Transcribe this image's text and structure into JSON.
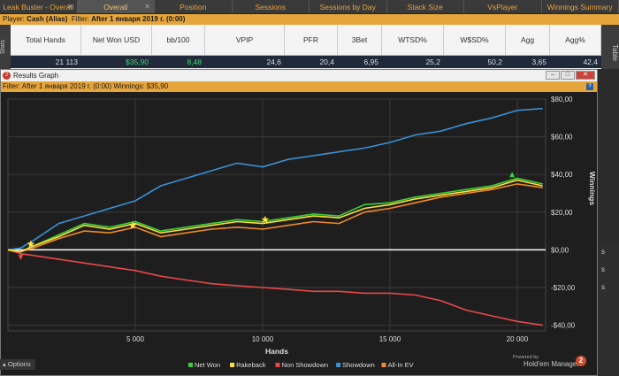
{
  "tabs": [
    {
      "label": "Leak Buster - Overall",
      "active": false,
      "closable": true
    },
    {
      "label": "Overall",
      "active": true,
      "closable": true
    },
    {
      "label": "Position",
      "active": false,
      "closable": false
    },
    {
      "label": "Sessions",
      "active": false,
      "closable": false
    },
    {
      "label": "Sessions by Day",
      "active": false,
      "closable": false
    },
    {
      "label": "Stack Size",
      "active": false,
      "closable": false
    },
    {
      "label": "VsPlayer",
      "active": false,
      "closable": false
    },
    {
      "label": "Winnings Summary",
      "active": false,
      "closable": false
    }
  ],
  "filter_bar": {
    "player_label": "Player:",
    "player": "Cash (Alias)",
    "filter_label": "Filter:",
    "filter": "After 1 января 2019 г. (0:00)"
  },
  "side": {
    "stats": "Stats",
    "table": "Table"
  },
  "stats": {
    "headers": [
      "Total Hands",
      "Net Won USD",
      "bb/100",
      "VPIP",
      "PFR",
      "3Bet",
      "WTSD%",
      "W$SD%",
      "Agg",
      "Agg%"
    ],
    "values": [
      "21 113",
      "$35,90",
      "8,48",
      "24,6",
      "20,4",
      "6,95",
      "25,2",
      "50,2",
      "3,65",
      "42,4"
    ]
  },
  "graph_window": {
    "title": "Results Graph",
    "app_icon": "hem-logo-icon",
    "buttons": {
      "minimize": "–",
      "maximize": "□",
      "close": "✕"
    },
    "filter": "Filter: After 1 января 2019 г. (0:00)  Winnings: $35,90",
    "help": "?"
  },
  "chart_data": {
    "type": "line",
    "xlabel": "Hands",
    "ylabel": "Winnings",
    "xlim": [
      0,
      21113
    ],
    "ylim": [
      -43,
      80
    ],
    "x_ticks": [
      5000,
      10000,
      15000,
      20000
    ],
    "x_tick_labels": [
      "5 000",
      "10 000",
      "15 000",
      "20 000"
    ],
    "y_ticks": [
      80,
      60,
      40,
      20,
      0,
      -20,
      -40
    ],
    "y_tick_labels": [
      "$80,00",
      "$60,00",
      "$40,00",
      "$20,00",
      "$0,00",
      "-$20,00",
      "-$40,00"
    ],
    "grid": true,
    "legend_position": "bottom",
    "x": [
      0,
      500,
      1000,
      2000,
      3000,
      4000,
      5000,
      6000,
      7000,
      8000,
      9000,
      10000,
      11000,
      12000,
      13000,
      14000,
      15000,
      16000,
      17000,
      18000,
      19000,
      20000,
      21000
    ],
    "series": [
      {
        "name": "Net Won",
        "color": "#3ad13a",
        "values": [
          0,
          -1,
          2,
          8,
          14,
          12,
          15,
          10,
          12,
          14,
          16,
          15,
          17,
          19,
          18,
          24,
          25,
          28,
          30,
          32,
          34,
          38,
          35
        ]
      },
      {
        "name": "Rakeback",
        "color": "#ffe13a",
        "values": [
          0,
          -1,
          2,
          7,
          13,
          11,
          14,
          9,
          11,
          13,
          15,
          14,
          16,
          18,
          17,
          22,
          24,
          27,
          29,
          31,
          33,
          37,
          34
        ]
      },
      {
        "name": "Non Showdown",
        "color": "#e84848",
        "values": [
          0,
          -2,
          -3,
          -5,
          -7,
          -9,
          -11,
          -14,
          -16,
          -18,
          -19,
          -20,
          -21,
          -22,
          -22,
          -23,
          -23,
          -24,
          -27,
          -32,
          -35,
          -38,
          -40
        ]
      },
      {
        "name": "Showdown",
        "color": "#3a90d6",
        "values": [
          0,
          1,
          5,
          14,
          18,
          22,
          26,
          34,
          38,
          42,
          46,
          44,
          48,
          50,
          52,
          54,
          57,
          61,
          63,
          67,
          70,
          74,
          75
        ]
      },
      {
        "name": "All-In EV",
        "color": "#f08a2a",
        "values": [
          0,
          -1,
          1,
          6,
          10,
          9,
          12,
          7,
          9,
          11,
          12,
          11,
          13,
          15,
          14,
          20,
          22,
          25,
          28,
          30,
          32,
          35,
          33
        ]
      }
    ],
    "markers": [
      {
        "type": "star",
        "color": "#ffe13a",
        "x": 900,
        "y": 3
      },
      {
        "type": "star",
        "color": "#ffe13a",
        "x": 4900,
        "y": 13
      },
      {
        "type": "star",
        "color": "#ffe13a",
        "x": 10100,
        "y": 16
      },
      {
        "type": "triangle-down",
        "color": "#e84848",
        "x": 500,
        "y": -4
      },
      {
        "type": "triangle-up",
        "color": "#3ad13a",
        "x": 19800,
        "y": 40
      }
    ]
  },
  "right_strip": [
    "s",
    "s",
    "s"
  ],
  "bottom": {
    "options": "Options",
    "options_icon": "chevron-up-icon",
    "powered_by": "Powered by",
    "brand": "Hold'em Manager",
    "brand_logo": "2"
  }
}
